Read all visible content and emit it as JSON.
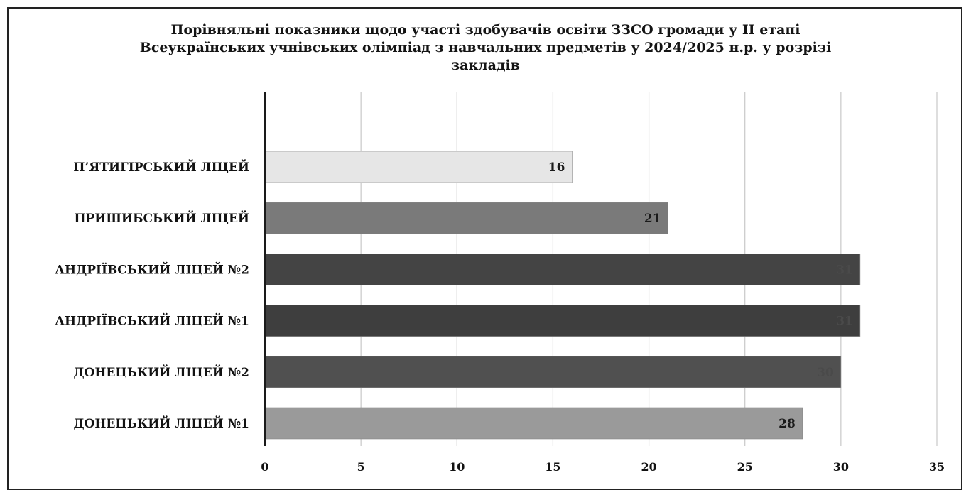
{
  "chart_data": {
    "type": "bar",
    "orientation": "horizontal",
    "title_lines": [
      "Порівняльні показники щодо участі здобувачів освіти ЗЗСО громади у ІІ етапі",
      "Всеукраїнських учнівських олімпіад з навчальних предметів у 2024/2025 н.р. у розрізі",
      "закладів"
    ],
    "categories": [
      "П’ЯТИГІРСЬКИЙ ЛІЦЕЙ",
      "ПРИШИБСЬКИЙ ЛІЦЕЙ",
      "АНДРІЇВСЬКИЙ ЛІЦЕЙ №2",
      "АНДРІЇВСЬКИЙ ЛІЦЕЙ №1",
      "ДОНЕЦЬКИЙ ЛІЦЕЙ №2",
      "ДОНЕЦЬКИЙ ЛІЦЕЙ №1"
    ],
    "values": [
      16,
      21,
      31,
      31,
      30,
      28
    ],
    "data_labels": [
      "16",
      "21",
      "31",
      "31",
      "30",
      "28"
    ],
    "bar_colors": [
      "#e6e6e6",
      "#7a7a7a",
      "#444444",
      "#3e3e3e",
      "#505050",
      "#9a9a9a"
    ],
    "label_colors": [
      "#1a1a1a",
      "#1a1a1a",
      "#4a4a4a",
      "#4a4a4a",
      "#4a4a4a",
      "#1a1a1a"
    ],
    "xlim": [
      0,
      35
    ],
    "xticks": [
      "0",
      "5",
      "10",
      "15",
      "20",
      "25",
      "30",
      "35"
    ],
    "grid": true,
    "legend": false
  }
}
